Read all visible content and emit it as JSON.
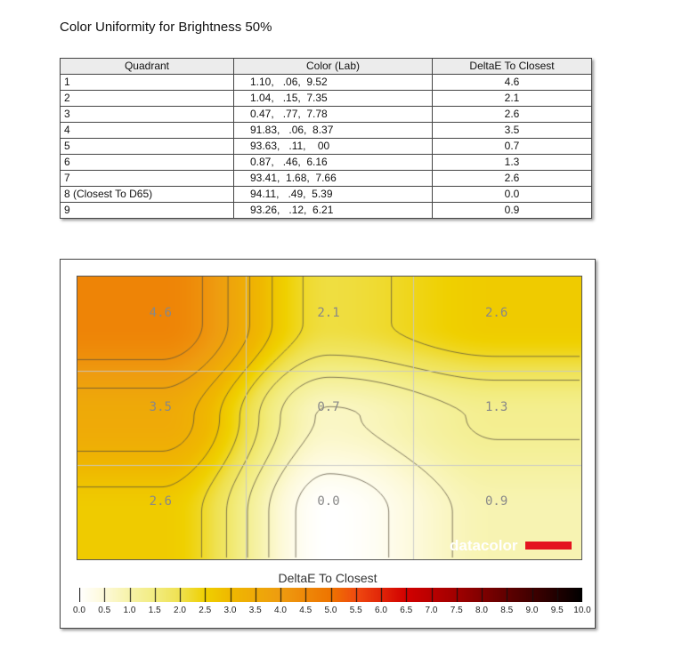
{
  "title": "Color Uniformity for Brightness 50%",
  "table": {
    "headers": [
      "Quadrant",
      "Color (Lab)",
      "DeltaE To Closest"
    ],
    "rows": [
      [
        "1",
        "1.10,   .06,  9.52",
        "4.6"
      ],
      [
        "2",
        "1.04,   .15,  7.35",
        "2.1"
      ],
      [
        "3",
        "0.47,   .77,  7.78",
        "2.6"
      ],
      [
        "4",
        "91.83,   .06,  8.37",
        "3.5"
      ],
      [
        "5",
        "93.63,   .11,    00",
        "0.7"
      ],
      [
        "6",
        "0.87,   .46,  6.16",
        "1.3"
      ],
      [
        "7",
        "93.41,  1.68,  7.66",
        "2.6"
      ],
      [
        "8 (Closest To D65)",
        "94.11,   .49,  5.39",
        "0.0"
      ],
      [
        "9",
        "93.26,   .12,  6.21",
        "0.9"
      ]
    ]
  },
  "chart_data": {
    "type": "heatmap",
    "grid": [
      [
        4.6,
        2.1,
        2.6
      ],
      [
        3.5,
        0.7,
        1.3
      ],
      [
        2.6,
        0.0,
        0.9
      ]
    ],
    "cell_labels": [
      [
        "4.6",
        "2.1",
        "2.6"
      ],
      [
        "3.5",
        "0.7",
        "1.3"
      ],
      [
        "2.6",
        "0.0",
        "0.9"
      ]
    ],
    "colorbar_title": "DeltaE To Closest",
    "colorbar_range": [
      0,
      10
    ],
    "colorbar_ticks": [
      "0.0",
      "0.5",
      "1.0",
      "1.5",
      "2.0",
      "2.5",
      "3.0",
      "3.5",
      "4.0",
      "4.5",
      "5.0",
      "5.5",
      "6.0",
      "6.5",
      "7.0",
      "7.5",
      "8.0",
      "8.5",
      "9.0",
      "9.5",
      "10.0"
    ],
    "colorscale": [
      [
        0,
        "#ffffff"
      ],
      [
        0.5,
        "#fdf9d8"
      ],
      [
        1.0,
        "#f6f2a8"
      ],
      [
        1.5,
        "#f2ec80"
      ],
      [
        2.0,
        "#efe150"
      ],
      [
        2.5,
        "#efd000"
      ],
      [
        3.0,
        "#efb800"
      ],
      [
        4.0,
        "#ee9c10"
      ],
      [
        5.0,
        "#ee7400"
      ],
      [
        5.5,
        "#f04a10"
      ],
      [
        6.5,
        "#d20000"
      ],
      [
        7.5,
        "#a00000"
      ],
      [
        8.5,
        "#600000"
      ],
      [
        10,
        "#000000"
      ]
    ],
    "grid_lines": true
  },
  "logo": "datacolor"
}
